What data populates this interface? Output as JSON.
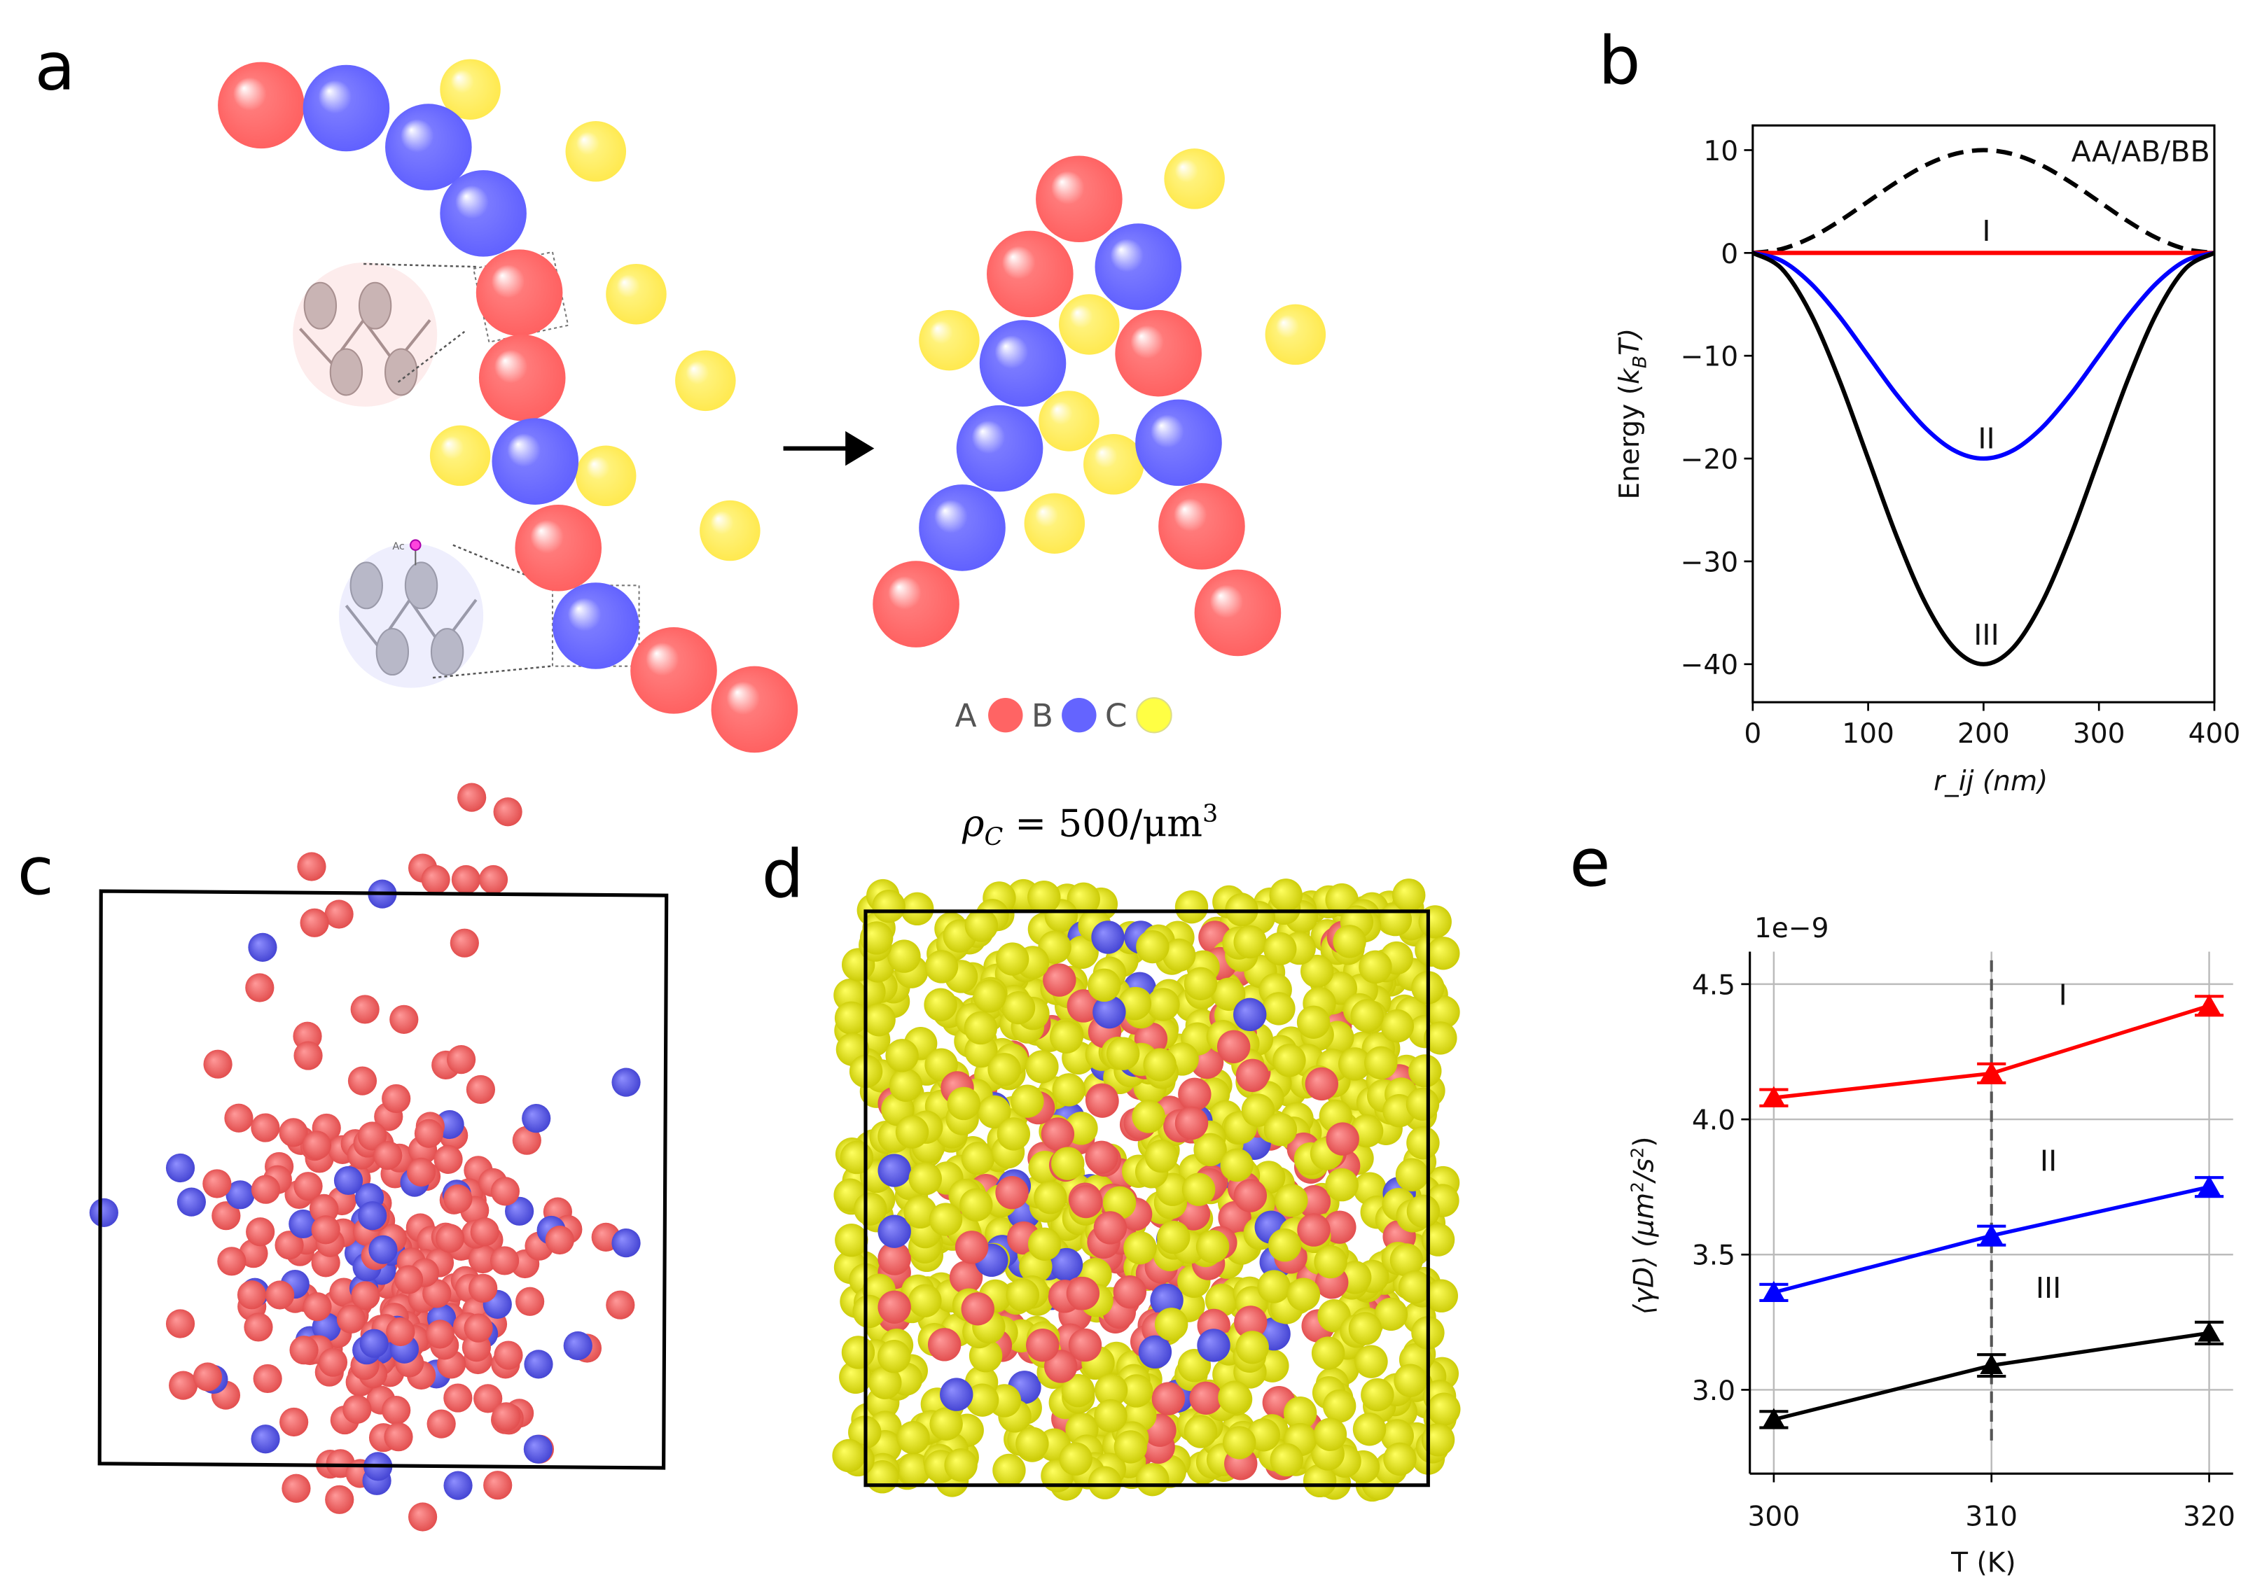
{
  "panels": {
    "a": {
      "label": "a",
      "inset_tag": "Ac",
      "legend": [
        {
          "name": "A",
          "color": "#ff6464"
        },
        {
          "name": "B",
          "color": "#6464ff"
        },
        {
          "name": "C",
          "color": "#fff04a"
        }
      ]
    },
    "b": {
      "label": "b"
    },
    "c": {
      "label": "c"
    },
    "d": {
      "label": "d",
      "title": "ρ_C = 500/μm³",
      "title_main": "ρ",
      "title_sub": "C",
      "title_rest": " = 500/μm",
      "title_sup": "3"
    },
    "e": {
      "label": "e"
    }
  },
  "colors": {
    "A": "#ff6464",
    "B": "#6464ff",
    "C": "#f2f000",
    "I": "#ff0000",
    "II": "#0000ff",
    "III": "#000000"
  },
  "chart_data": [
    {
      "id": "b",
      "type": "line",
      "title": "",
      "xlabel": "r_ij (nm)",
      "xlabel_main": "r",
      "xlabel_sub": "ij",
      "xlabel_rest": " (nm)",
      "ylabel": "Energy (k_B T)",
      "ylabel_main": "Energy (",
      "ylabel_k": "k",
      "ylabel_sub": "B",
      "ylabel_rest": "T)",
      "xlim": [
        0,
        400
      ],
      "ylim": [
        -43.7,
        12.4
      ],
      "xticks": [
        0,
        100,
        200,
        300,
        400
      ],
      "xtick_labels": [
        "0",
        "100",
        "200",
        "300",
        "400"
      ],
      "yticks": [
        10,
        0,
        -10,
        -20,
        -30,
        -40
      ],
      "ytick_labels": [
        "10",
        "0",
        "−10",
        "−20",
        "−30",
        "−40"
      ],
      "grid": false,
      "x": [
        0,
        25,
        50,
        75,
        100,
        125,
        150,
        175,
        200,
        225,
        250,
        275,
        300,
        325,
        350,
        375,
        400
      ],
      "series": [
        {
          "name": "AA/AB/BB",
          "color": "#000000",
          "style": "dashed",
          "values": [
            0,
            0.38,
            1.46,
            3.09,
            5,
            6.91,
            8.54,
            9.62,
            10,
            9.62,
            8.54,
            6.91,
            5,
            3.09,
            1.46,
            0.38,
            0
          ]
        },
        {
          "name": "I",
          "color": "#ff0000",
          "style": "solid",
          "values": [
            0,
            0,
            0,
            0,
            0,
            0,
            0,
            0,
            0,
            0,
            0,
            0,
            0,
            0,
            0,
            0,
            0
          ]
        },
        {
          "name": "II",
          "color": "#0000ff",
          "style": "solid",
          "values": [
            0,
            -0.76,
            -2.93,
            -6.17,
            -10,
            -13.83,
            -17.07,
            -19.24,
            -20,
            -19.24,
            -17.07,
            -13.83,
            -10,
            -6.17,
            -2.93,
            -0.76,
            0
          ]
        },
        {
          "name": "III",
          "color": "#000000",
          "style": "solid",
          "values": [
            0,
            -1.52,
            -5.86,
            -12.35,
            -20,
            -27.65,
            -34.14,
            -38.48,
            -40,
            -38.48,
            -34.14,
            -27.65,
            -20,
            -12.35,
            -5.86,
            -1.52,
            0
          ]
        }
      ],
      "annotations": [
        "AA/AB/BB",
        "I",
        "II",
        "III"
      ]
    },
    {
      "id": "e",
      "type": "line",
      "title": "",
      "xlabel": "T (K)",
      "ylabel": "⟨γD⟩ (μm²/s²)",
      "ylabel_a": "⟨γD⟩ (μm",
      "ylabel_sup1": "2",
      "ylabel_b": "/s",
      "ylabel_sup2": "2",
      "ylabel_c": ")",
      "offset_text": "1e−9",
      "xlim": [
        298.9,
        321.1
      ],
      "ylim": [
        2.69,
        4.62
      ],
      "xticks": [
        300,
        310,
        320
      ],
      "xtick_labels": [
        "300",
        "310",
        "320"
      ],
      "yticks": [
        3.0,
        3.5,
        4.0,
        4.5
      ],
      "ytick_labels": [
        "3.0",
        "3.5",
        "4.0",
        "4.5"
      ],
      "grid": true,
      "vline": 310,
      "x": [
        300,
        310,
        320
      ],
      "series": [
        {
          "name": "I",
          "color": "#ff0000",
          "marker": "triangle",
          "values": [
            4.08,
            4.17,
            4.42
          ],
          "errors": [
            0.03,
            0.035,
            0.035
          ]
        },
        {
          "name": "II",
          "color": "#0000ff",
          "marker": "triangle",
          "values": [
            3.36,
            3.57,
            3.75
          ],
          "errors": [
            0.03,
            0.035,
            0.035
          ]
        },
        {
          "name": "III",
          "color": "#000000",
          "marker": "triangle",
          "values": [
            2.89,
            3.09,
            3.21
          ],
          "errors": [
            0.03,
            0.04,
            0.04
          ]
        }
      ],
      "annotations": [
        "I",
        "II",
        "III"
      ]
    }
  ]
}
